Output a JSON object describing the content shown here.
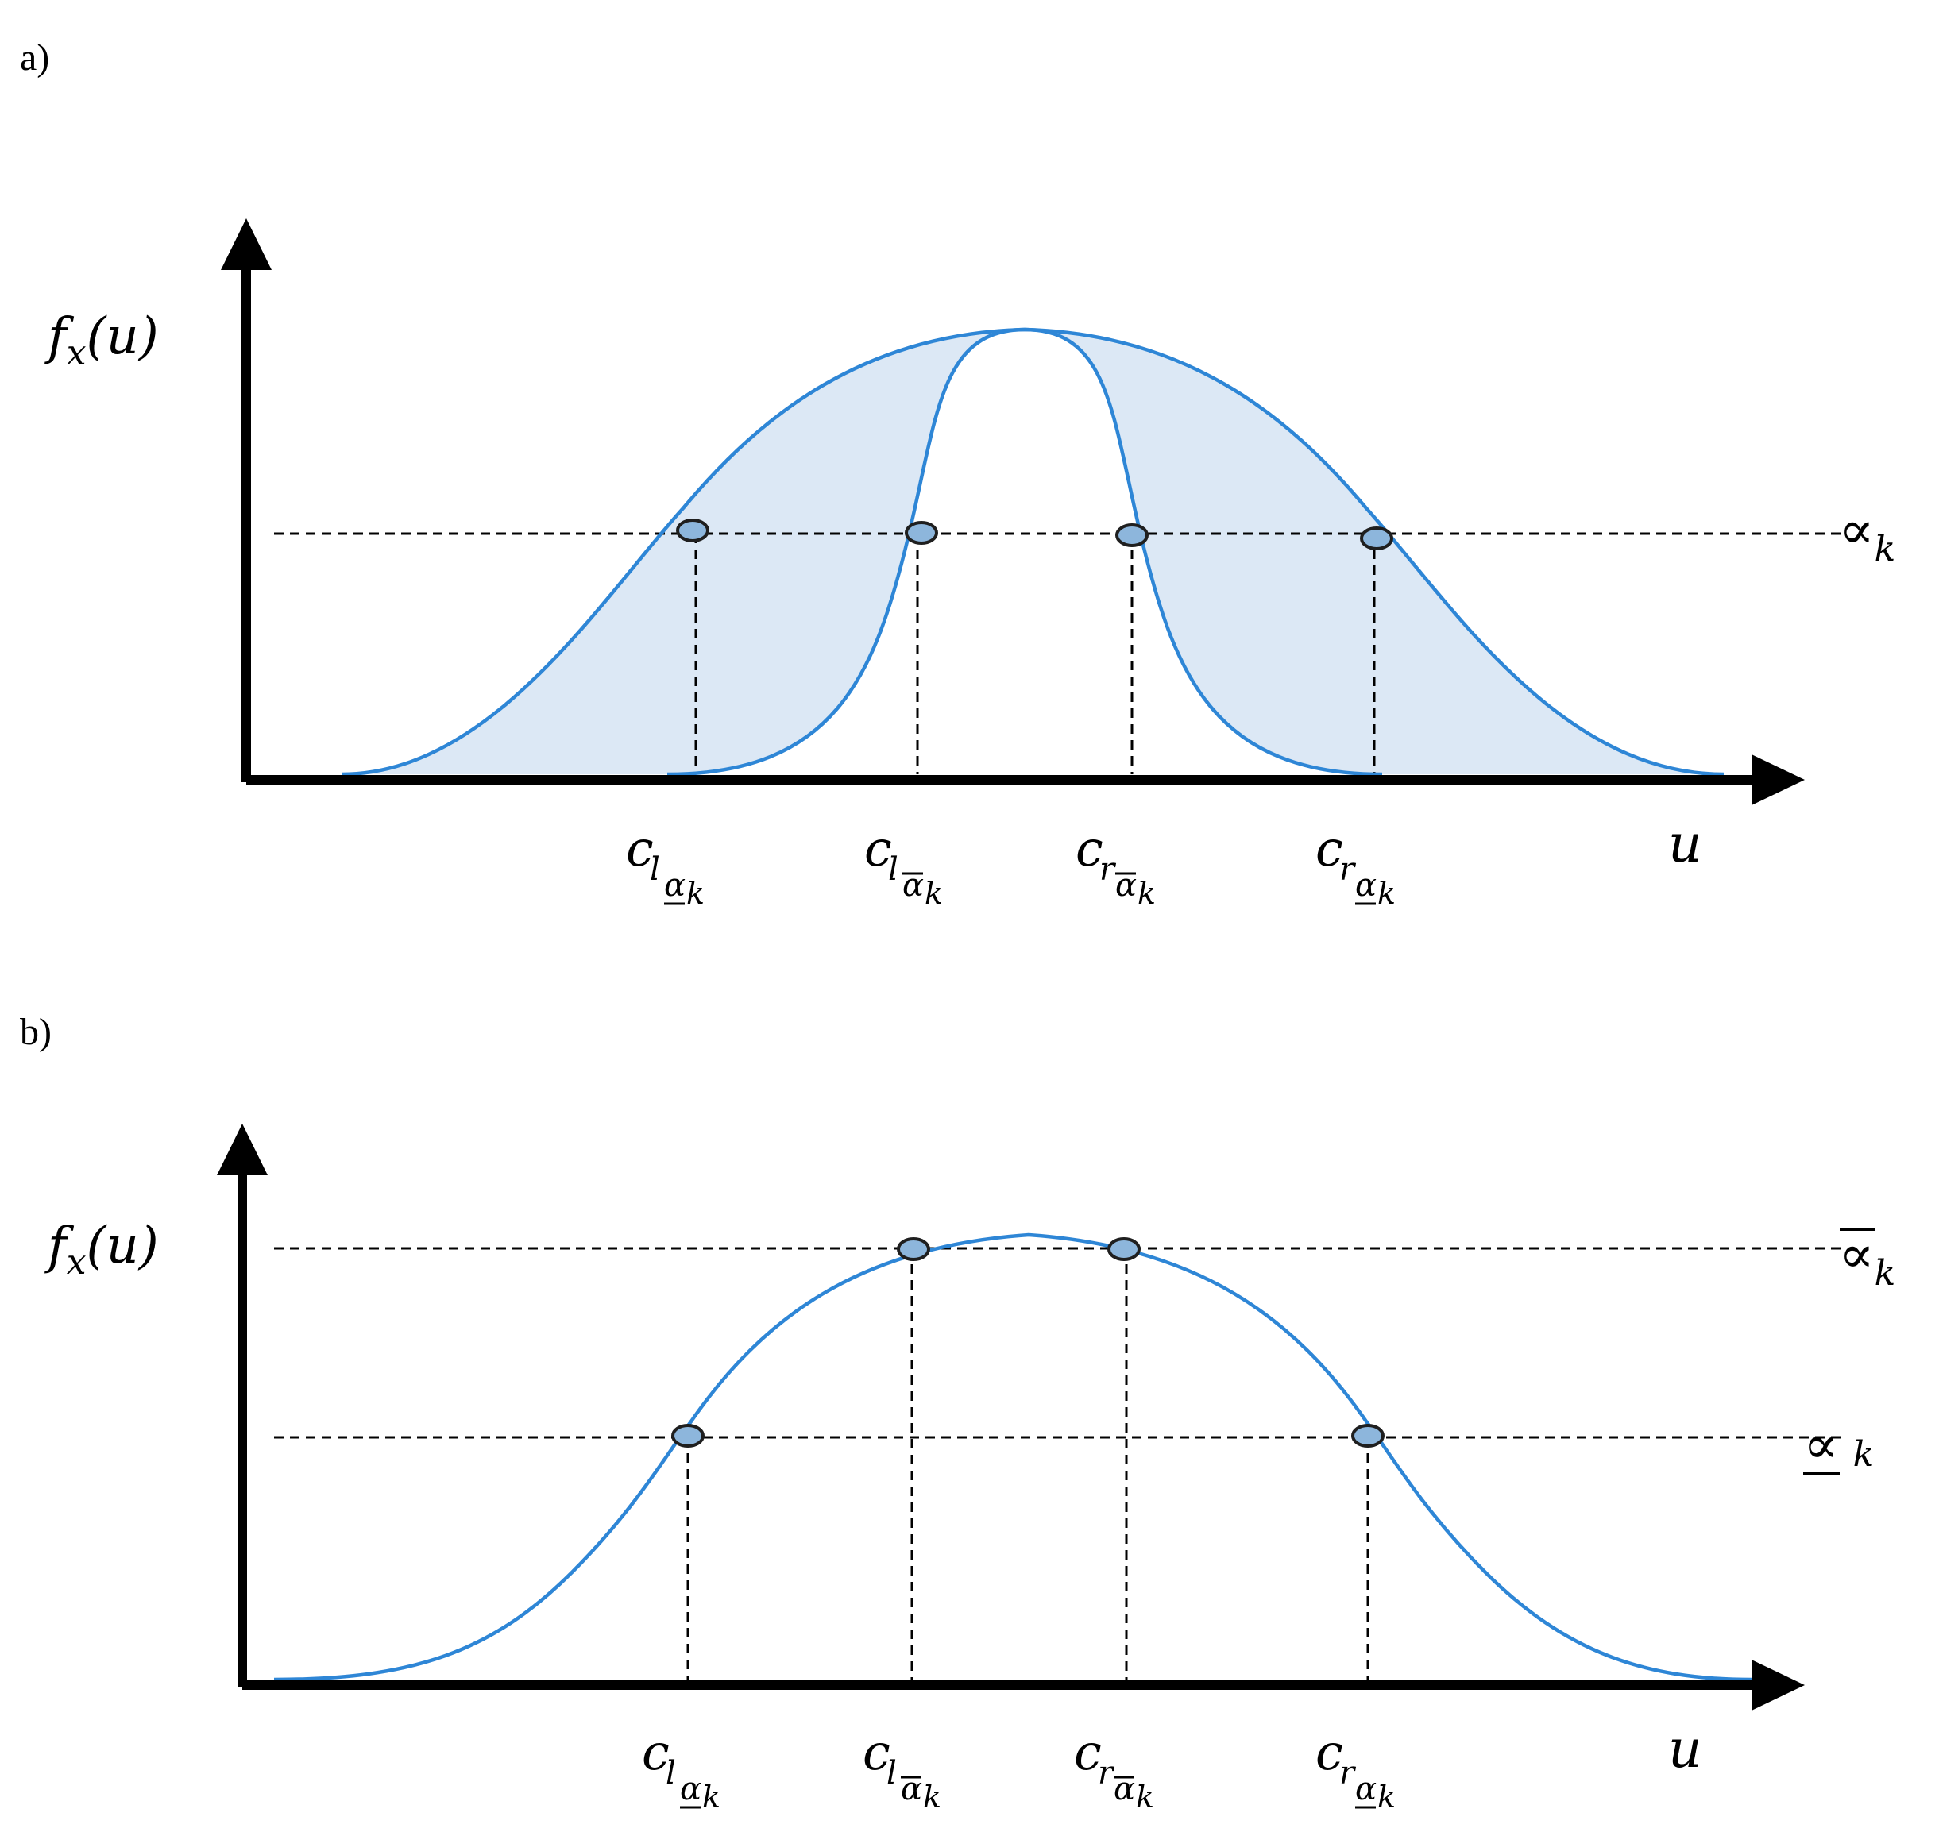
{
  "panels": [
    {
      "label": "a)",
      "y_axis_label": {
        "f": "f",
        "sub": "x",
        "arg": "(u)"
      },
      "x_axis_label": "u",
      "alpha_level": {
        "symbol": "∝",
        "sub": "k"
      },
      "x_ticks": [
        {
          "c": "c",
          "side": "l",
          "bar": "under",
          "alpha": "α",
          "k": "k"
        },
        {
          "c": "c",
          "side": "l",
          "bar": "over",
          "alpha": "α",
          "k": "k"
        },
        {
          "c": "c",
          "side": "r",
          "bar": "over",
          "alpha": "α",
          "k": "k"
        },
        {
          "c": "c",
          "side": "r",
          "bar": "under",
          "alpha": "α",
          "k": "k"
        }
      ]
    },
    {
      "label": "b)",
      "y_axis_label": {
        "f": "f",
        "sub": "x",
        "arg": "(u)"
      },
      "x_axis_label": "u",
      "upper_level": {
        "symbol": "∝",
        "sub": "k",
        "bar": "over"
      },
      "lower_level": {
        "symbol": "∝",
        "sub": "k",
        "bar": "under"
      },
      "x_ticks": [
        {
          "c": "c",
          "side": "l",
          "bar": "under",
          "alpha": "α",
          "k": "k"
        },
        {
          "c": "c",
          "side": "l",
          "bar": "over",
          "alpha": "α",
          "k": "k"
        },
        {
          "c": "c",
          "side": "r",
          "bar": "over",
          "alpha": "α",
          "k": "k"
        },
        {
          "c": "c",
          "side": "r",
          "bar": "under",
          "alpha": "α",
          "k": "k"
        }
      ]
    }
  ],
  "colors": {
    "curve": "#2e86d6",
    "band_fill": "#dce8f5",
    "marker_fill": "#8db6dc",
    "axis": "#000000"
  }
}
